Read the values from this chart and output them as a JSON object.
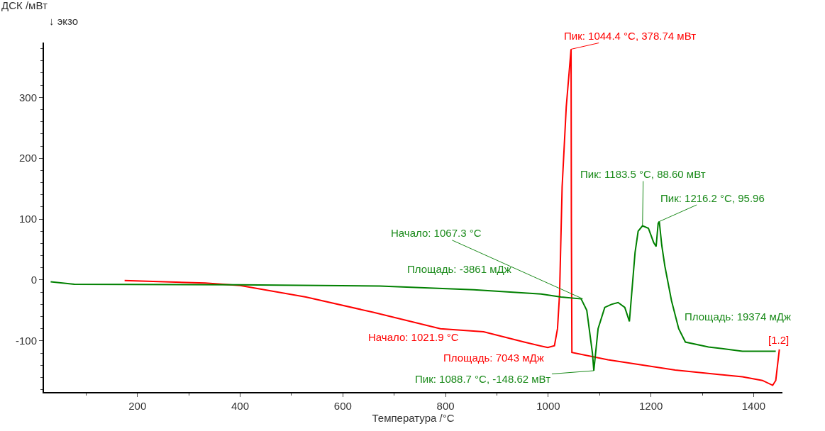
{
  "chart_data": {
    "type": "line",
    "xlabel": "Температура /°C",
    "ylabel": "ДСК /мВт",
    "xlim": [
      18,
      1456
    ],
    "xticks": [
      200,
      400,
      600,
      800,
      1000,
      1200,
      1400
    ],
    "ylim": [
      -184,
      390
    ],
    "yticks": [
      -100,
      0,
      100,
      200,
      300
    ],
    "marker": "none",
    "line_style": "solid",
    "series": [
      {
        "color": "#ff0000",
        "x": [
          175,
          332,
          400,
          528,
          659,
          790,
          874,
          953,
          999,
          1012,
          1018,
          1022,
          1027,
          1035,
          1044.4,
          1045,
          1046,
          1116,
          1247,
          1378,
          1417,
          1437,
          1443,
          1450
        ],
        "values": [
          -1,
          -5,
          -9,
          -28,
          -53,
          -80,
          -85,
          -102,
          -111,
          -108,
          -80,
          -23,
          153,
          284,
          379,
          100,
          -119,
          -131,
          -148,
          -159,
          -165,
          -173,
          -165,
          -114
        ]
      },
      {
        "color": "#008000",
        "x": [
          31,
          77,
          397,
          672,
          855,
          986,
          1025,
          1064,
          1075,
          1086,
          1088.7,
          1097,
          1110,
          1123,
          1136,
          1149,
          1158,
          1169,
          1175,
          1183.5,
          1195,
          1205,
          1210,
          1214,
          1216.2,
          1221,
          1227,
          1240,
          1254,
          1267,
          1312,
          1378,
          1443
        ],
        "values": [
          -3,
          -7,
          -8,
          -10,
          -16,
          -23,
          -28,
          -31,
          -50,
          -120,
          -149,
          -80,
          -45,
          -40,
          -37,
          -45,
          -68,
          45,
          80,
          89,
          85,
          62,
          55,
          93,
          96,
          57,
          23,
          -34,
          -80,
          -102,
          -110,
          -117,
          -117
        ]
      }
    ],
    "annotations": [
      {
        "text": "Пик: 1044.4 °C, 378.74 мВт",
        "x": 1044.4,
        "y": 379
      },
      {
        "text": "Пик: 1183.5 °C, 88.60 мВт",
        "x": 1183.5,
        "y": 89
      },
      {
        "text": "Пик: 1216.2 °C, 95.96",
        "x": 1216.2,
        "y": 96
      },
      {
        "text": "Начало: 1067.3 °C",
        "x": 1067.3,
        "y": -31
      },
      "Площадь: -3861 мДж",
      "Площадь: 19374 мДж",
      "Начало: 1021.9 °C",
      "Площадь: 7043 мДж",
      {
        "text": "Пик: 1088.7 °C, -148.62 мВт",
        "x": 1088.7,
        "y": -149
      },
      "[1.2]",
      "↓ экзо"
    ]
  }
}
